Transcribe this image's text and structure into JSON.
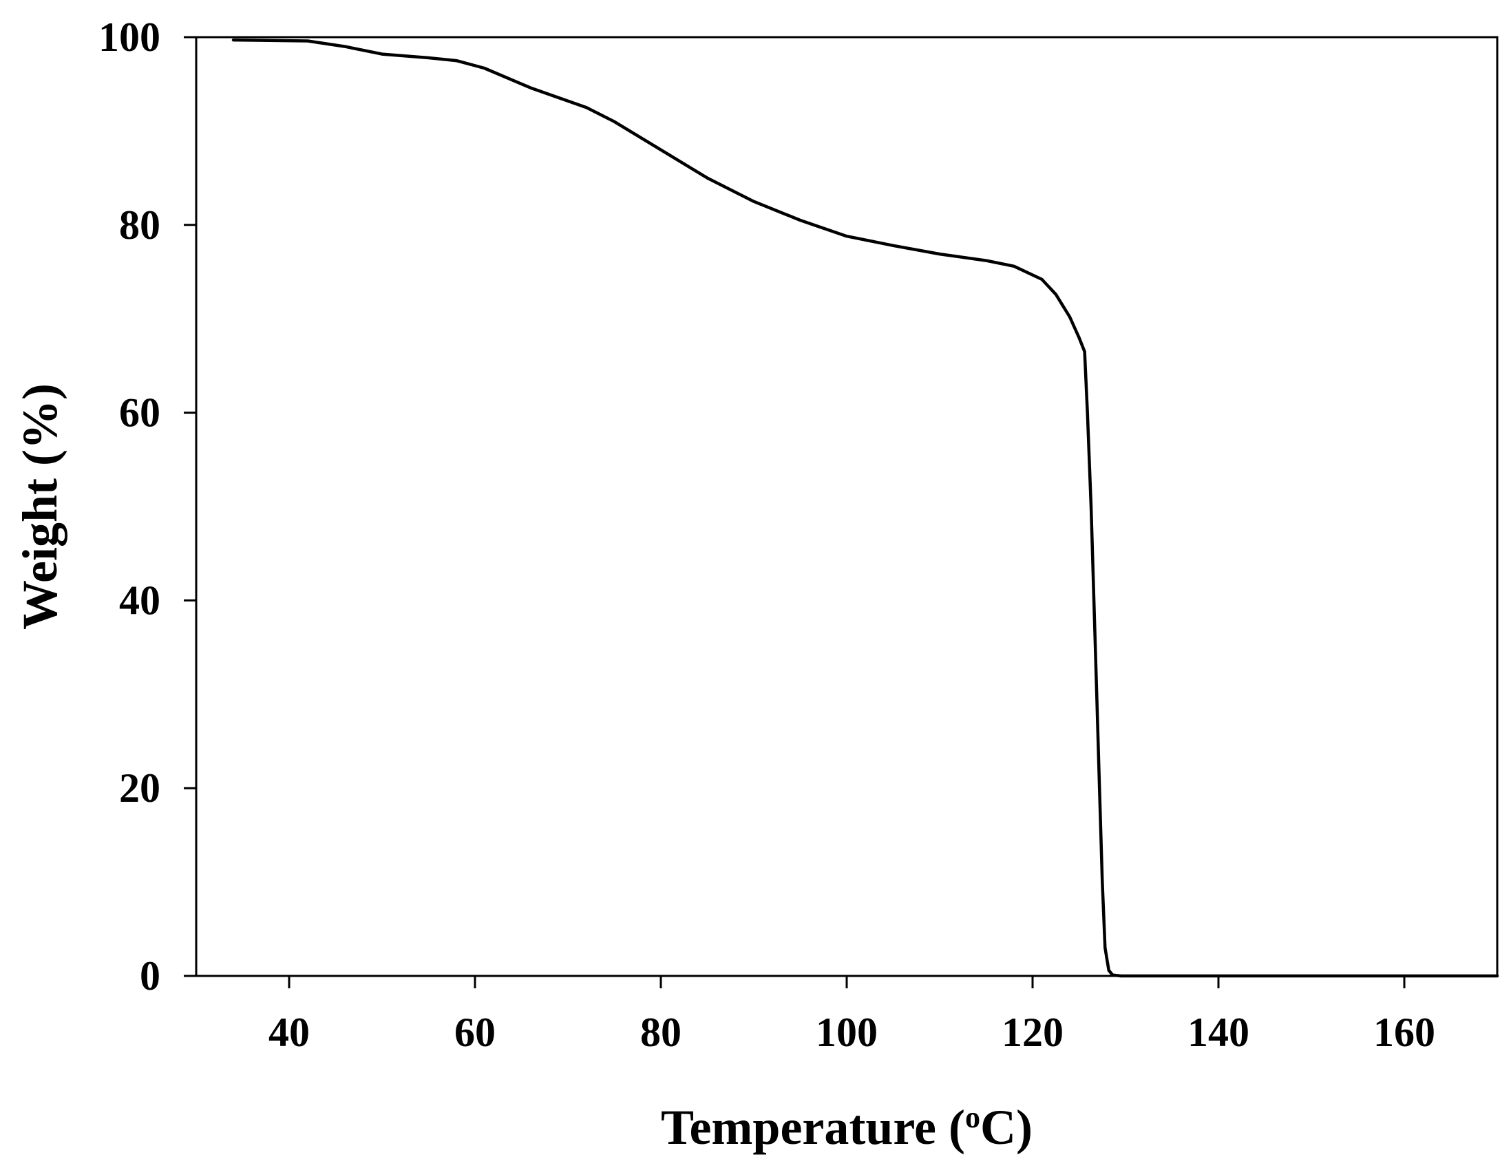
{
  "chart_data": {
    "type": "line",
    "title": "",
    "xlabel": "Temperature (",
    "xlabel_superscript": "o",
    "xlabel_suffix": "C)",
    "ylabel": "Weight (%)",
    "xlim": [
      30,
      170
    ],
    "ylim": [
      0,
      100
    ],
    "xticks": [
      40,
      60,
      80,
      100,
      120,
      140,
      160
    ],
    "yticks": [
      0,
      20,
      40,
      60,
      80,
      100
    ],
    "grid": false,
    "line_color": "#000000",
    "series": [
      {
        "x": [
          34,
          42,
          46,
          50,
          55,
          58,
          61,
          66,
          72,
          75,
          80,
          85,
          90,
          95,
          100,
          105,
          110,
          115,
          118,
          121,
          122.5,
          124,
          125,
          125.6,
          125.9,
          126.3,
          126.6,
          126.9,
          127.2,
          127.5,
          127.8,
          128.2,
          128.6,
          129.5,
          135,
          150,
          170
        ],
        "y": [
          99.7,
          99.6,
          99,
          98.2,
          97.8,
          97.5,
          96.7,
          94.6,
          92.5,
          91,
          88,
          85,
          82.5,
          80.5,
          78.8,
          77.8,
          76.9,
          76.2,
          75.6,
          74.2,
          72.6,
          70.2,
          68,
          66.5,
          60,
          50,
          40,
          30,
          20,
          10,
          3,
          0.6,
          0.1,
          0,
          0,
          0,
          0
        ]
      }
    ]
  }
}
